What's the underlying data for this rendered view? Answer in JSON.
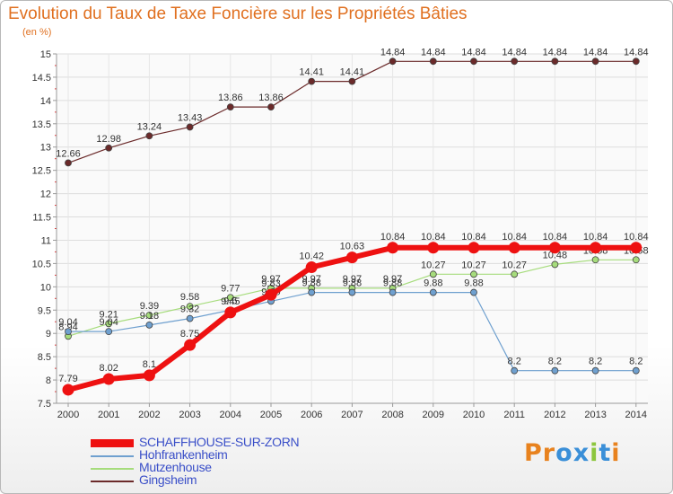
{
  "title": "Evolution du Taux de Taxe Foncière sur les Propriétés Bâties",
  "unit": "(en %)",
  "logo": {
    "text": "Proxiti",
    "colors": [
      "#e8821e",
      "#e8821e",
      "#3a8fd8",
      "#3a8fd8",
      "#8cc63e",
      "#3a8fd8",
      "#e8821e"
    ]
  },
  "chart_data": {
    "type": "line",
    "x": [
      "2000",
      "2001",
      "2002",
      "2003",
      "2004",
      "2005",
      "2006",
      "2007",
      "2008",
      "2009",
      "2010",
      "2011",
      "2012",
      "2013",
      "2014"
    ],
    "ylim": [
      7.5,
      15
    ],
    "yticks": [
      "7.5",
      "8",
      "8.5",
      "9",
      "9.5",
      "10",
      "10.5",
      "11",
      "11.5",
      "12",
      "12.5",
      "13",
      "13.5",
      "14",
      "14.5",
      "15"
    ],
    "grid": true,
    "legend_position": "bottom-left",
    "series": [
      {
        "name": "Gingsheim",
        "color": "#6b2a2a",
        "width": 1.2,
        "marker": 3.5,
        "values": [
          12.66,
          12.98,
          13.24,
          13.43,
          13.86,
          13.86,
          14.41,
          14.41,
          14.84,
          14.84,
          14.84,
          14.84,
          14.84,
          14.84,
          14.84
        ],
        "labels": [
          "12.66",
          "12.98",
          "13.24",
          "13.43",
          "13.86",
          "13.86",
          "14.41",
          "14.41",
          "14.84",
          "14.84",
          "14.84",
          "14.84",
          "14.84",
          "14.84",
          "14.84"
        ]
      },
      {
        "name": "Mutzenhouse",
        "color": "#a6dc7c",
        "width": 1.2,
        "marker": 3.5,
        "values": [
          8.94,
          9.21,
          9.39,
          9.58,
          9.77,
          9.97,
          9.97,
          9.97,
          9.97,
          10.27,
          10.27,
          10.27,
          10.48,
          10.58,
          10.58
        ],
        "labels": [
          "8.94",
          "9.21",
          "9.39",
          "9.58",
          "9.77",
          "9.97",
          "9.97",
          "9.97",
          "9.97",
          "10.27",
          "10.27",
          "10.27",
          "10.48",
          "10.58",
          "10.58"
        ]
      },
      {
        "name": "Hohfrankenheim",
        "color": "#6fa0cf",
        "width": 1.2,
        "marker": 3.5,
        "values": [
          9.04,
          9.04,
          9.18,
          9.32,
          9.5,
          9.69,
          9.88,
          9.88,
          9.88,
          9.88,
          9.88,
          8.2,
          8.2,
          8.2,
          8.2
        ],
        "labels": [
          "9.04",
          "9.04",
          "9.18",
          "9.32",
          "9.5",
          "9.69",
          "9.88",
          "9.88",
          "9.88",
          "9.88",
          "9.88",
          "8.2",
          "8.2",
          "8.2",
          "8.2"
        ]
      },
      {
        "name": "SCHAFFHOUSE-SUR-ZORN",
        "color": "#ee1111",
        "width": 6,
        "marker": 6.5,
        "values": [
          7.79,
          8.02,
          8.1,
          8.75,
          9.45,
          9.83,
          10.42,
          10.63,
          10.84,
          10.84,
          10.84,
          10.84,
          10.84,
          10.84,
          10.84
        ],
        "labels": [
          "7.79",
          "8.02",
          "8.1",
          "8.75",
          "9.45",
          "9.83",
          "10.42",
          "10.63",
          "10.84",
          "10.84",
          "10.84",
          "10.84",
          "10.84",
          "10.84",
          "10.84"
        ]
      }
    ]
  }
}
